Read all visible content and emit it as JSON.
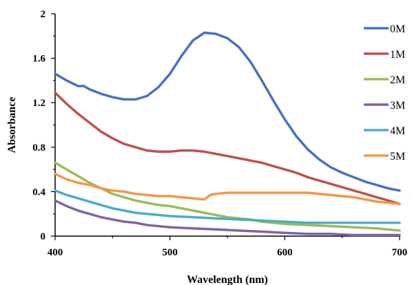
{
  "chart_data": {
    "type": "line",
    "xlabel": "Wavelength (nm)",
    "ylabel": "Absorbance",
    "xlim": [
      400,
      700
    ],
    "ylim": [
      0,
      2
    ],
    "xticks": [
      400,
      500,
      600,
      700
    ],
    "yticks": [
      0,
      0.4,
      0.8,
      1.2,
      1.6,
      2
    ],
    "ytick_labels": [
      "0",
      "0.4",
      "0.8",
      "1.2",
      "1.6",
      "2"
    ],
    "xtick_labels": [
      "400",
      "500",
      "600",
      "700"
    ],
    "grid": false,
    "legend_position": "right",
    "series": [
      {
        "name": "0M",
        "color": "#4472C4",
        "points": [
          [
            400,
            1.46
          ],
          [
            410,
            1.4
          ],
          [
            420,
            1.35
          ],
          [
            425,
            1.35
          ],
          [
            430,
            1.32
          ],
          [
            440,
            1.28
          ],
          [
            450,
            1.25
          ],
          [
            460,
            1.23
          ],
          [
            470,
            1.23
          ],
          [
            480,
            1.26
          ],
          [
            490,
            1.34
          ],
          [
            500,
            1.46
          ],
          [
            510,
            1.62
          ],
          [
            520,
            1.76
          ],
          [
            530,
            1.83
          ],
          [
            540,
            1.82
          ],
          [
            550,
            1.78
          ],
          [
            560,
            1.7
          ],
          [
            570,
            1.57
          ],
          [
            580,
            1.4
          ],
          [
            590,
            1.22
          ],
          [
            600,
            1.05
          ],
          [
            610,
            0.9
          ],
          [
            620,
            0.78
          ],
          [
            630,
            0.69
          ],
          [
            640,
            0.62
          ],
          [
            650,
            0.57
          ],
          [
            660,
            0.53
          ],
          [
            670,
            0.49
          ],
          [
            680,
            0.46
          ],
          [
            690,
            0.43
          ],
          [
            700,
            0.41
          ]
        ]
      },
      {
        "name": "1M",
        "color": "#C0504D",
        "points": [
          [
            400,
            1.29
          ],
          [
            410,
            1.19
          ],
          [
            420,
            1.1
          ],
          [
            430,
            1.02
          ],
          [
            440,
            0.94
          ],
          [
            450,
            0.88
          ],
          [
            460,
            0.83
          ],
          [
            470,
            0.8
          ],
          [
            480,
            0.77
          ],
          [
            490,
            0.76
          ],
          [
            500,
            0.76
          ],
          [
            510,
            0.77
          ],
          [
            520,
            0.77
          ],
          [
            530,
            0.76
          ],
          [
            540,
            0.74
          ],
          [
            550,
            0.72
          ],
          [
            560,
            0.7
          ],
          [
            570,
            0.68
          ],
          [
            580,
            0.66
          ],
          [
            590,
            0.63
          ],
          [
            600,
            0.6
          ],
          [
            610,
            0.57
          ],
          [
            620,
            0.53
          ],
          [
            630,
            0.5
          ],
          [
            640,
            0.47
          ],
          [
            650,
            0.44
          ],
          [
            660,
            0.41
          ],
          [
            670,
            0.38
          ],
          [
            680,
            0.35
          ],
          [
            690,
            0.32
          ],
          [
            700,
            0.29
          ]
        ]
      },
      {
        "name": "2M",
        "color": "#9BBB59",
        "points": [
          [
            400,
            0.66
          ],
          [
            410,
            0.6
          ],
          [
            420,
            0.54
          ],
          [
            430,
            0.48
          ],
          [
            440,
            0.43
          ],
          [
            450,
            0.38
          ],
          [
            460,
            0.35
          ],
          [
            470,
            0.32
          ],
          [
            480,
            0.3
          ],
          [
            490,
            0.28
          ],
          [
            500,
            0.27
          ],
          [
            510,
            0.25
          ],
          [
            520,
            0.23
          ],
          [
            530,
            0.21
          ],
          [
            540,
            0.19
          ],
          [
            550,
            0.17
          ],
          [
            560,
            0.16
          ],
          [
            570,
            0.15
          ],
          [
            580,
            0.13
          ],
          [
            590,
            0.12
          ],
          [
            600,
            0.11
          ],
          [
            620,
            0.1
          ],
          [
            640,
            0.09
          ],
          [
            660,
            0.08
          ],
          [
            680,
            0.07
          ],
          [
            700,
            0.05
          ]
        ]
      },
      {
        "name": "3M",
        "color": "#8064A2",
        "points": [
          [
            400,
            0.32
          ],
          [
            410,
            0.27
          ],
          [
            420,
            0.23
          ],
          [
            430,
            0.2
          ],
          [
            440,
            0.17
          ],
          [
            450,
            0.15
          ],
          [
            460,
            0.13
          ],
          [
            470,
            0.12
          ],
          [
            480,
            0.1
          ],
          [
            490,
            0.09
          ],
          [
            500,
            0.08
          ],
          [
            520,
            0.07
          ],
          [
            540,
            0.06
          ],
          [
            560,
            0.05
          ],
          [
            580,
            0.04
          ],
          [
            600,
            0.03
          ],
          [
            620,
            0.02
          ],
          [
            640,
            0.02
          ],
          [
            660,
            0.01
          ],
          [
            680,
            0.01
          ],
          [
            700,
            0.01
          ]
        ]
      },
      {
        "name": "4M",
        "color": "#4BACC6",
        "points": [
          [
            400,
            0.41
          ],
          [
            410,
            0.37
          ],
          [
            420,
            0.34
          ],
          [
            430,
            0.31
          ],
          [
            440,
            0.28
          ],
          [
            450,
            0.25
          ],
          [
            460,
            0.23
          ],
          [
            470,
            0.21
          ],
          [
            480,
            0.2
          ],
          [
            490,
            0.19
          ],
          [
            500,
            0.18
          ],
          [
            520,
            0.17
          ],
          [
            540,
            0.16
          ],
          [
            560,
            0.15
          ],
          [
            580,
            0.14
          ],
          [
            600,
            0.13
          ],
          [
            620,
            0.12
          ],
          [
            640,
            0.12
          ],
          [
            660,
            0.12
          ],
          [
            680,
            0.12
          ],
          [
            700,
            0.12
          ]
        ]
      },
      {
        "name": "5M",
        "color": "#F79646",
        "points": [
          [
            400,
            0.56
          ],
          [
            410,
            0.51
          ],
          [
            420,
            0.48
          ],
          [
            430,
            0.46
          ],
          [
            440,
            0.43
          ],
          [
            450,
            0.41
          ],
          [
            460,
            0.4
          ],
          [
            470,
            0.38
          ],
          [
            480,
            0.37
          ],
          [
            490,
            0.36
          ],
          [
            500,
            0.36
          ],
          [
            510,
            0.35
          ],
          [
            520,
            0.34
          ],
          [
            530,
            0.33
          ],
          [
            535,
            0.37
          ],
          [
            540,
            0.38
          ],
          [
            550,
            0.39
          ],
          [
            560,
            0.39
          ],
          [
            570,
            0.39
          ],
          [
            580,
            0.39
          ],
          [
            590,
            0.39
          ],
          [
            600,
            0.39
          ],
          [
            610,
            0.39
          ],
          [
            620,
            0.39
          ],
          [
            630,
            0.38
          ],
          [
            640,
            0.37
          ],
          [
            650,
            0.36
          ],
          [
            660,
            0.35
          ],
          [
            670,
            0.33
          ],
          [
            680,
            0.31
          ],
          [
            690,
            0.3
          ],
          [
            700,
            0.29
          ]
        ]
      }
    ]
  }
}
